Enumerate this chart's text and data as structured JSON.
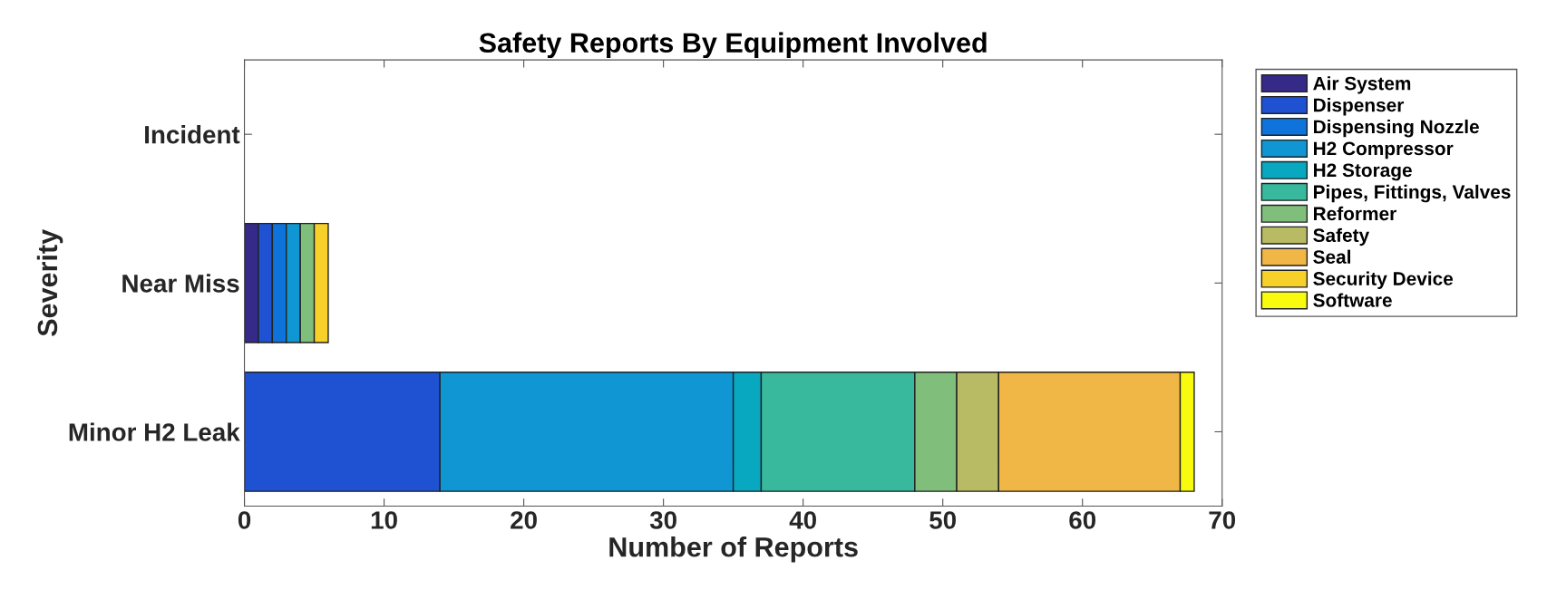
{
  "chart_data": {
    "type": "bar",
    "orientation": "horizontal",
    "stacked": true,
    "title": "Safety Reports By Equipment Involved",
    "xlabel": "Number of Reports",
    "ylabel": "Severity",
    "categories": [
      "Incident",
      "Near Miss",
      "Minor H2 Leak"
    ],
    "series": [
      {
        "name": "Air System",
        "color": "#352a87",
        "values": [
          0,
          1,
          0
        ]
      },
      {
        "name": "Dispenser",
        "color": "#1f52d3",
        "values": [
          0,
          1,
          14
        ]
      },
      {
        "name": "Dispensing Nozzle",
        "color": "#0f73dc",
        "values": [
          0,
          1,
          0
        ]
      },
      {
        "name": "H2 Compressor",
        "color": "#0f96d3",
        "values": [
          0,
          1,
          21
        ]
      },
      {
        "name": "H2 Storage",
        "color": "#08a8c0",
        "values": [
          0,
          0,
          2
        ]
      },
      {
        "name": "Pipes, Fittings, Valves",
        "color": "#38b89d",
        "values": [
          0,
          0,
          11
        ]
      },
      {
        "name": "Reformer",
        "color": "#7fbf7b",
        "values": [
          0,
          1,
          3
        ]
      },
      {
        "name": "Safety",
        "color": "#b8bb63",
        "values": [
          0,
          0,
          3
        ]
      },
      {
        "name": "Seal",
        "color": "#f0b646",
        "values": [
          0,
          0,
          13
        ]
      },
      {
        "name": "Security Device",
        "color": "#f8d02a",
        "values": [
          0,
          1,
          0
        ]
      },
      {
        "name": "Software",
        "color": "#f9fb0e",
        "values": [
          0,
          0,
          1
        ]
      }
    ],
    "xlim": [
      0,
      70
    ],
    "xticks": [
      0,
      10,
      20,
      30,
      40,
      50,
      60,
      70
    ],
    "grid": false,
    "legend": "right"
  }
}
